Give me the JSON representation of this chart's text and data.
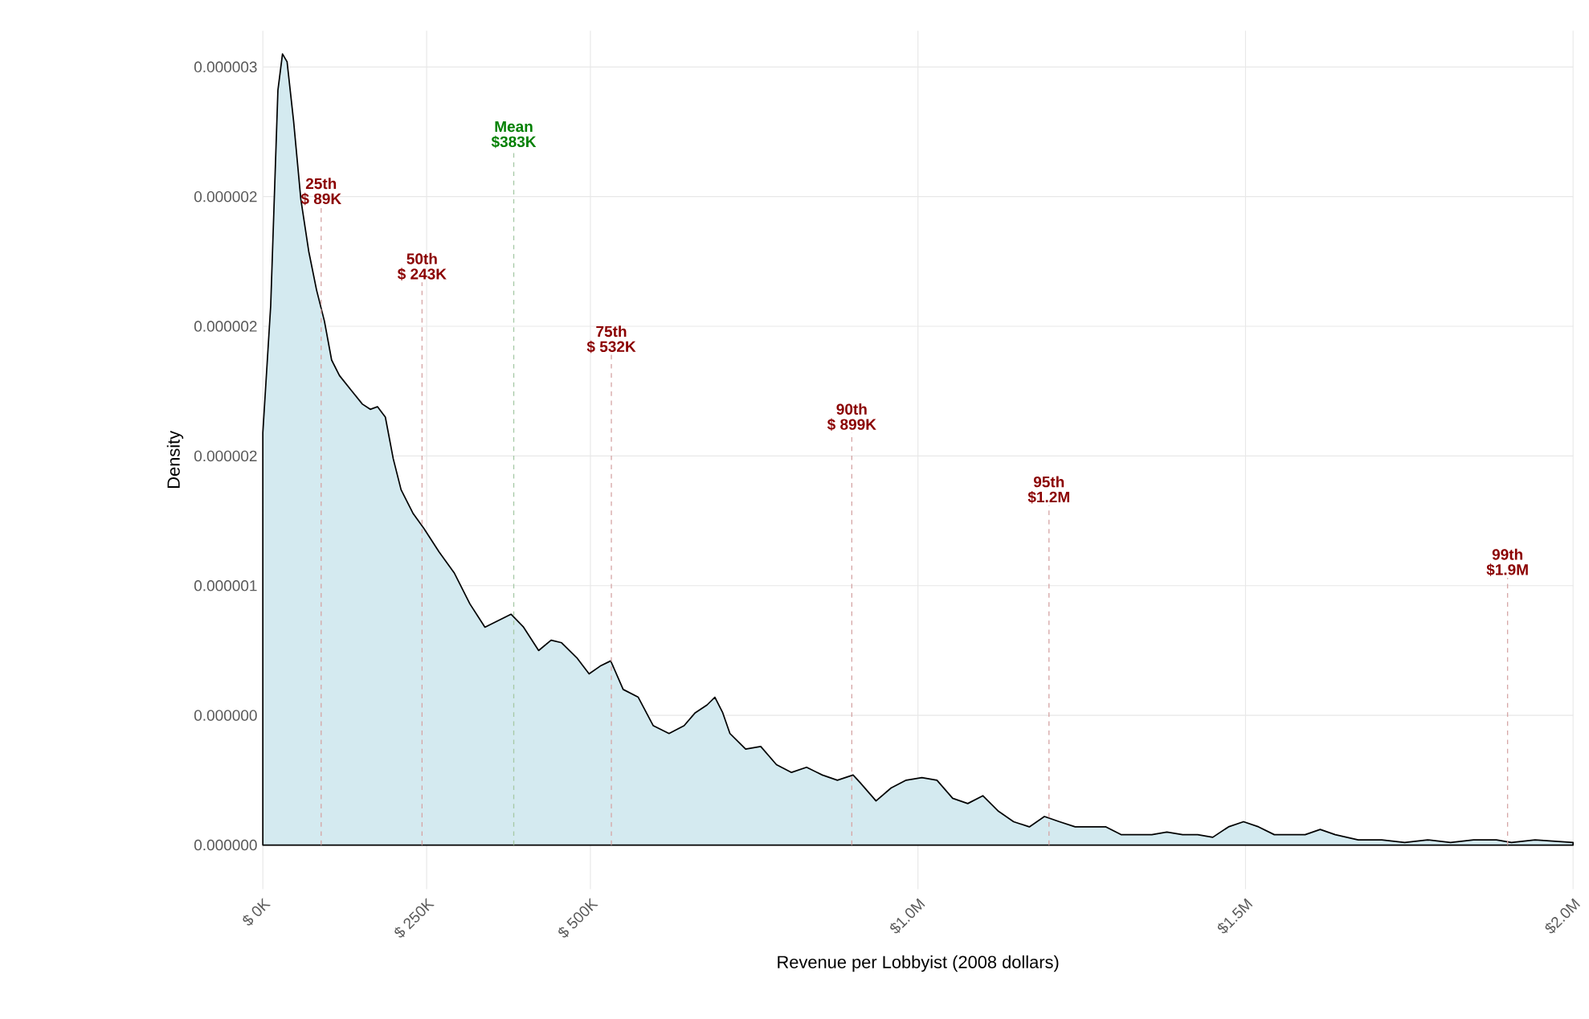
{
  "chart_data": {
    "type": "area",
    "xlabel": "Revenue per Lobbyist (2008 dollars)",
    "ylabel": "Density",
    "color": "#d4eaf0",
    "grid": true,
    "x": [
      0,
      12000,
      23000,
      30000,
      37000,
      47000,
      58000,
      70000,
      82000,
      94000,
      105000,
      117000,
      136000,
      152000,
      164000,
      175000,
      187000,
      199000,
      211000,
      229000,
      246000,
      269000,
      292000,
      316000,
      339000,
      363000,
      379000,
      398000,
      421000,
      440000,
      456000,
      480000,
      498000,
      515000,
      531000,
      550000,
      573000,
      596000,
      620000,
      643000,
      660000,
      678000,
      690000,
      702000,
      713000,
      737000,
      760000,
      784000,
      807000,
      830000,
      854000,
      877000,
      901000,
      912000,
      936000,
      959000,
      982000,
      1006000,
      1029000,
      1053000,
      1076000,
      1099000,
      1123000,
      1146000,
      1170000,
      1193000,
      1216000,
      1240000,
      1263000,
      1287000,
      1310000,
      1333000,
      1357000,
      1380000,
      1404000,
      1427000,
      1450000,
      1474000,
      1497000,
      1520000,
      1544000,
      1567000,
      1591000,
      1614000,
      1637000,
      1672000,
      1708000,
      1743000,
      1778000,
      1813000,
      1848000,
      1883000,
      1906000,
      1942000,
      2000000
    ],
    "values": [
      1.59e-06,
      2.08e-06,
      2.91e-06,
      3.05e-06,
      3.02e-06,
      2.79e-06,
      2.49e-06,
      2.29e-06,
      2.14e-06,
      2.02e-06,
      1.87e-06,
      1.81e-06,
      1.75e-06,
      1.7e-06,
      1.68e-06,
      1.69e-06,
      1.65e-06,
      1.49e-06,
      1.37e-06,
      1.28e-06,
      1.22e-06,
      1.13e-06,
      1.05e-06,
      9.3e-07,
      8.4e-07,
      8.7e-07,
      8.9e-07,
      8.4e-07,
      7.5e-07,
      7.9e-07,
      7.8e-07,
      7.2e-07,
      6.6e-07,
      6.9e-07,
      7.1e-07,
      6e-07,
      5.7e-07,
      4.6e-07,
      4.3e-07,
      4.6e-07,
      5.1e-07,
      5.4e-07,
      5.7e-07,
      5.1e-07,
      4.3e-07,
      3.7e-07,
      3.8e-07,
      3.1e-07,
      2.8e-07,
      3e-07,
      2.7e-07,
      2.5e-07,
      2.7e-07,
      2.4e-07,
      1.7e-07,
      2.2e-07,
      2.5e-07,
      2.6e-07,
      2.5e-07,
      1.8e-07,
      1.6e-07,
      1.9e-07,
      1.3e-07,
      9e-08,
      7e-08,
      1.1e-07,
      9e-08,
      7e-08,
      7e-08,
      7e-08,
      4e-08,
      4e-08,
      4e-08,
      5e-08,
      4e-08,
      4e-08,
      3e-08,
      7e-08,
      9e-08,
      7e-08,
      4e-08,
      4e-08,
      4e-08,
      6e-08,
      4e-08,
      2e-08,
      2e-08,
      1e-08,
      2e-08,
      1e-08,
      2e-08,
      2e-08,
      1e-08,
      2e-08,
      1e-08
    ],
    "xlim": [
      0,
      2000000
    ],
    "ylim": [
      -1.7e-07,
      3.14e-06
    ],
    "xticks": [
      {
        "value": 0,
        "label": "$ 0K"
      },
      {
        "value": 250000,
        "label": "$ 250K"
      },
      {
        "value": 500000,
        "label": "$ 500K"
      },
      {
        "value": 1000000,
        "label": "$1.0M"
      },
      {
        "value": 1500000,
        "label": "$1.5M"
      },
      {
        "value": 2000000,
        "label": "$2.0M"
      }
    ],
    "yticks": [
      {
        "value": 0,
        "label": "0.000000"
      },
      {
        "value": 5e-07,
        "label": "0.000000"
      },
      {
        "value": 1e-06,
        "label": "0.000001"
      },
      {
        "value": 1.5e-06,
        "label": "0.000002"
      },
      {
        "value": 2e-06,
        "label": "0.000002"
      },
      {
        "value": 2.5e-06,
        "label": "0.000002"
      },
      {
        "value": 3e-06,
        "label": "0.000003"
      }
    ],
    "ref_lines": [
      {
        "axis": "x",
        "value": 89000,
        "label": "25th",
        "color": "#d6a6a6",
        "line_style": "dashed"
      },
      {
        "axis": "x",
        "value": 243000,
        "label": "50th",
        "color": "#d6a6a6",
        "line_style": "dashed"
      },
      {
        "axis": "x",
        "value": 383000,
        "label": "Mean",
        "color": "#a6c9a6",
        "line_style": "dashed"
      },
      {
        "axis": "x",
        "value": 532000,
        "label": "75th",
        "color": "#d6a6a6",
        "line_style": "dashed"
      },
      {
        "axis": "x",
        "value": 899000,
        "label": "90th",
        "color": "#d6a6a6",
        "line_style": "dashed"
      },
      {
        "axis": "x",
        "value": 1200000,
        "label": "95th",
        "color": "#d6a6a6",
        "line_style": "dashed"
      },
      {
        "axis": "x",
        "value": 1900000,
        "label": "99th",
        "color": "#d6a6a6",
        "line_style": "dashed"
      }
    ],
    "annotations": [
      {
        "text": "$  89K",
        "x": 89000,
        "y": 2.46e-06
      },
      {
        "text": "$  243K",
        "x": 243000,
        "y": 2.17e-06
      },
      {
        "text": "$383K",
        "x": 383000,
        "y": 2.68e-06
      },
      {
        "text": "$  532K",
        "x": 532000,
        "y": 1.89e-06
      },
      {
        "text": "$  899K",
        "x": 899000,
        "y": 1.59e-06
      },
      {
        "text": "$1.2M",
        "x": 1200000,
        "y": 1.31e-06
      },
      {
        "text": "$1.9M",
        "x": 1900000,
        "y": 1.03e-06
      }
    ]
  }
}
